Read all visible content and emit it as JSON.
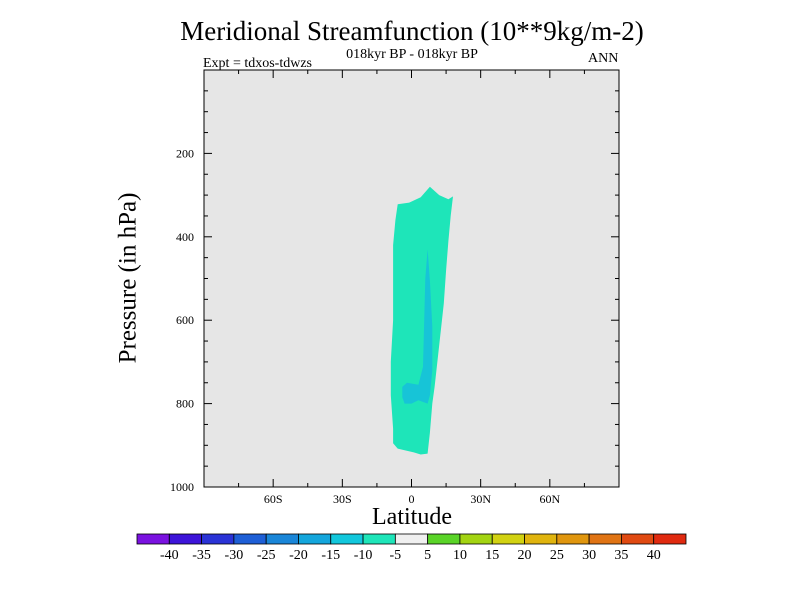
{
  "chart_data": {
    "type": "contour",
    "title": "Meridional Streamfunction (10**9kg/m-2)",
    "subtitle": "018kyr BP - 018kyr BP",
    "experiment_label": "Expt = tdxos-tdwzs",
    "season_label": "ANN",
    "xlabel": "Latitude",
    "ylabel": "Pressure (in hPa)",
    "xlim": [
      -90,
      90
    ],
    "ylim": [
      1000,
      0
    ],
    "x_ticks": [
      {
        "value": -60,
        "label": "60S"
      },
      {
        "value": -30,
        "label": "30S"
      },
      {
        "value": 0,
        "label": "0"
      },
      {
        "value": 30,
        "label": "30N"
      },
      {
        "value": 60,
        "label": "60N"
      }
    ],
    "y_ticks": [
      {
        "value": 200,
        "label": "200"
      },
      {
        "value": 400,
        "label": "400"
      },
      {
        "value": 600,
        "label": "600"
      },
      {
        "value": 800,
        "label": "800"
      },
      {
        "value": 1000,
        "label": "1000"
      }
    ],
    "background_color": "#e6e6e6",
    "contour_regions": [
      {
        "level": "-10 to -5",
        "color": "#1ee5b9",
        "outline": [
          [
            -6,
            322
          ],
          [
            -1,
            318
          ],
          [
            4,
            305
          ],
          [
            8,
            280
          ],
          [
            12,
            300
          ],
          [
            16,
            310
          ],
          [
            18,
            303
          ],
          [
            17,
            350
          ],
          [
            16,
            410
          ],
          [
            15,
            480
          ],
          [
            14,
            560
          ],
          [
            12,
            660
          ],
          [
            10,
            760
          ],
          [
            9,
            800
          ],
          [
            8,
            870
          ],
          [
            7,
            920
          ],
          [
            4,
            922
          ],
          [
            1,
            917
          ],
          [
            -3,
            912
          ],
          [
            -6,
            908
          ],
          [
            -8,
            895
          ],
          [
            -8,
            860
          ],
          [
            -9,
            780
          ],
          [
            -9,
            700
          ],
          [
            -8,
            600
          ],
          [
            -8,
            500
          ],
          [
            -8,
            420
          ],
          [
            -7,
            360
          ],
          [
            -6,
            322
          ]
        ]
      },
      {
        "level": "-15 to -10",
        "color": "#17c4d7",
        "outline": [
          [
            -4,
            785
          ],
          [
            -4,
            760
          ],
          [
            -2,
            750
          ],
          [
            3,
            755
          ],
          [
            5,
            712
          ],
          [
            6,
            500
          ],
          [
            7,
            430
          ],
          [
            8,
            505
          ],
          [
            9,
            615
          ],
          [
            9,
            720
          ],
          [
            8,
            780
          ],
          [
            7,
            800
          ],
          [
            3,
            792
          ],
          [
            0,
            800
          ],
          [
            -3,
            800
          ],
          [
            -4,
            785
          ]
        ]
      }
    ],
    "colorbar": {
      "tick_labels": [
        "-40",
        "-35",
        "-30",
        "-25",
        "-20",
        "-15",
        "-10",
        "-5",
        "5",
        "10",
        "15",
        "20",
        "25",
        "30",
        "35",
        "40"
      ],
      "colors": [
        "#7a12e0",
        "#3d14d9",
        "#2a33d6",
        "#1e5fd6",
        "#1a86d8",
        "#14a6dc",
        "#12c7dc",
        "#1ee5b9",
        "#f0f0f0",
        "#5ad428",
        "#a3d412",
        "#d2d212",
        "#e0b40e",
        "#e0960e",
        "#e07414",
        "#e04a12",
        "#e02a10"
      ]
    }
  }
}
